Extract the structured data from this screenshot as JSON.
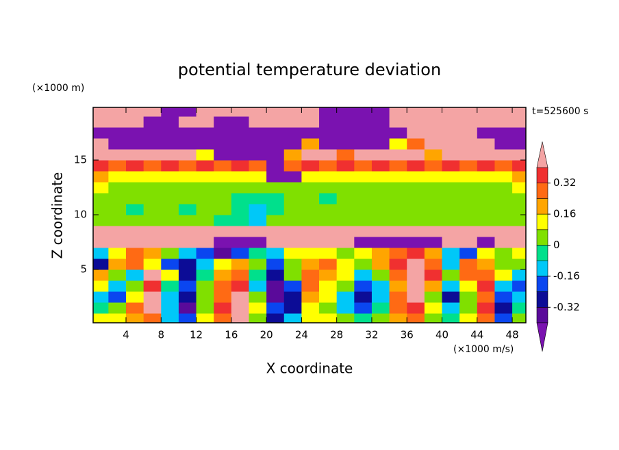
{
  "chart_data": {
    "type": "contour",
    "title": "potential temperature deviation",
    "x_label": "X coordinate",
    "y_label": "Z coordinate",
    "x_unit": "(×1000 m/s)",
    "y_unit": "(×1000 m)",
    "time_label": "t=525600 s",
    "xlim": [
      0,
      50
    ],
    "ylim": [
      0,
      20
    ],
    "xticks": [
      4,
      8,
      12,
      16,
      20,
      24,
      28,
      32,
      36,
      40,
      44,
      48
    ],
    "yticks": [
      5,
      10,
      15
    ],
    "x": [
      1,
      3,
      5,
      7,
      9,
      11,
      13,
      15,
      17,
      19,
      21,
      23,
      25,
      27,
      29,
      31,
      33,
      35,
      37,
      39,
      41,
      43,
      45,
      47,
      49
    ],
    "y": [
      0.5,
      1.5,
      2.5,
      3.5,
      4.5,
      5.5,
      6.5,
      7.5,
      8.5,
      9.5,
      10.5,
      11.5,
      12.5,
      13.5,
      14.5,
      15.5,
      16.5,
      17.5,
      18.5,
      19.5
    ],
    "z": [
      [
        0.1,
        0.12,
        0.2,
        0.3,
        -0.1,
        -0.2,
        0.1,
        0.25,
        0.45,
        0.05,
        -0.3,
        -0.1,
        0.15,
        0.1,
        0.05,
        -0.05,
        0.05,
        0.2,
        0.3,
        0.05,
        -0.05,
        0.1,
        0.3,
        -0.2,
        0.05
      ],
      [
        -0.05,
        0.05,
        0.25,
        0.4,
        -0.15,
        -0.35,
        0.05,
        0.35,
        0.5,
        0.1,
        -0.2,
        -0.25,
        0.15,
        0.05,
        -0.1,
        -0.2,
        -0.05,
        0.3,
        0.35,
        0.1,
        -0.15,
        0.05,
        0.35,
        -0.25,
        -0.05
      ],
      [
        -0.1,
        -0.2,
        0.15,
        0.4,
        -0.1,
        -0.3,
        0.0,
        0.3,
        0.45,
        0.0,
        -0.35,
        -0.3,
        0.2,
        0.1,
        -0.15,
        -0.3,
        -0.1,
        0.25,
        0.4,
        0.05,
        -0.3,
        0.0,
        0.3,
        -0.2,
        -0.1
      ],
      [
        0.1,
        -0.15,
        0.05,
        0.35,
        -0.05,
        -0.2,
        0.05,
        0.3,
        0.35,
        -0.1,
        -0.4,
        -0.2,
        0.25,
        0.15,
        0.0,
        -0.2,
        -0.15,
        0.2,
        0.4,
        0.2,
        -0.1,
        0.15,
        0.35,
        -0.1,
        -0.2
      ],
      [
        0.2,
        0.05,
        -0.1,
        0.4,
        0.1,
        -0.25,
        -0.05,
        0.2,
        0.3,
        -0.05,
        -0.3,
        0.0,
        0.3,
        0.2,
        0.1,
        -0.1,
        0.05,
        0.3,
        0.4,
        0.35,
        0.05,
        0.25,
        0.3,
        0.1,
        -0.15
      ],
      [
        -0.3,
        0.2,
        0.3,
        0.1,
        -0.2,
        -0.3,
        -0.15,
        0.15,
        0.2,
        0.05,
        -0.2,
        0.05,
        0.2,
        0.25,
        0.15,
        0.05,
        0.2,
        0.35,
        0.4,
        0.25,
        -0.1,
        0.3,
        0.2,
        0.05,
        0.0
      ],
      [
        -0.1,
        0.15,
        0.25,
        0.2,
        0.05,
        -0.1,
        -0.2,
        -0.35,
        -0.2,
        -0.05,
        -0.1,
        0.1,
        0.15,
        0.1,
        0.05,
        0.1,
        0.2,
        0.3,
        0.35,
        0.2,
        -0.1,
        -0.2,
        0.1,
        0.05,
        0.1
      ],
      [
        0.5,
        0.5,
        0.5,
        0.5,
        0.5,
        0.5,
        0.5,
        -0.5,
        -0.5,
        -0.5,
        0.5,
        0.5,
        0.5,
        0.5,
        0.5,
        -0.5,
        -0.5,
        -0.5,
        -0.5,
        -0.5,
        0.5,
        0.5,
        -0.45,
        0.5,
        0.5
      ],
      [
        0.5,
        0.5,
        0.5,
        0.5,
        0.5,
        0.5,
        0.5,
        0.5,
        0.5,
        0.5,
        0.5,
        0.5,
        0.5,
        0.5,
        0.5,
        0.5,
        0.5,
        0.5,
        0.5,
        0.5,
        0.5,
        0.5,
        0.5,
        0.5,
        0.5
      ],
      [
        0.03,
        0.02,
        0.03,
        0.05,
        0.02,
        0.03,
        0.04,
        -0.03,
        -0.05,
        -0.1,
        0.02,
        0.03,
        0.04,
        0.03,
        0.02,
        0.03,
        0.04,
        0.02,
        0.03,
        0.04,
        0.03,
        0.02,
        0.03,
        0.04,
        0.03
      ],
      [
        0.02,
        0.05,
        -0.03,
        0.03,
        0.05,
        -0.02,
        0.03,
        0.04,
        -0.04,
        -0.1,
        -0.03,
        0.05,
        0.03,
        0.04,
        0.02,
        0.05,
        0.03,
        0.04,
        0.02,
        0.05,
        0.03,
        0.04,
        0.05,
        0.03,
        0.04
      ],
      [
        0.04,
        0.03,
        0.05,
        0.04,
        0.03,
        0.05,
        0.04,
        0.03,
        -0.03,
        -0.05,
        -0.02,
        0.04,
        0.05,
        -0.02,
        0.04,
        0.05,
        0.03,
        0.04,
        0.05,
        0.03,
        0.04,
        0.05,
        0.03,
        0.04,
        0.05
      ],
      [
        0.1,
        0.06,
        0.05,
        0.06,
        0.05,
        0.06,
        0.05,
        0.06,
        0.05,
        0.06,
        0.05,
        0.06,
        0.05,
        0.06,
        0.05,
        0.06,
        0.05,
        0.06,
        0.05,
        0.06,
        0.05,
        0.06,
        0.05,
        0.06,
        0.1
      ],
      [
        0.2,
        0.12,
        0.15,
        0.12,
        0.15,
        0.12,
        0.15,
        0.12,
        0.15,
        0.12,
        -0.5,
        -0.45,
        0.15,
        0.12,
        0.15,
        0.12,
        0.15,
        0.12,
        0.15,
        0.12,
        0.15,
        0.12,
        0.15,
        0.12,
        0.2
      ],
      [
        0.35,
        0.3,
        0.35,
        0.3,
        0.35,
        0.3,
        0.35,
        0.3,
        0.35,
        0.3,
        -0.5,
        0.3,
        0.35,
        0.3,
        0.35,
        0.3,
        0.35,
        0.3,
        0.35,
        0.3,
        0.35,
        0.3,
        0.35,
        0.3,
        0.35
      ],
      [
        0.5,
        0.5,
        0.45,
        0.5,
        0.45,
        0.5,
        0.1,
        -0.5,
        -0.5,
        -0.5,
        -0.5,
        0.2,
        0.45,
        0.5,
        0.3,
        0.45,
        0.5,
        0.45,
        0.5,
        0.2,
        0.45,
        0.5,
        0.45,
        0.5,
        0.5
      ],
      [
        0.5,
        -0.5,
        -0.5,
        -0.5,
        -0.5,
        -0.5,
        -0.5,
        -0.5,
        -0.5,
        -0.5,
        -0.5,
        -0.5,
        0.2,
        -0.5,
        -0.5,
        -0.5,
        -0.5,
        0.1,
        0.3,
        0.5,
        0.5,
        0.5,
        0.5,
        -0.5,
        -0.5
      ],
      [
        -0.5,
        -0.5,
        -0.5,
        -0.5,
        -0.5,
        -0.5,
        -0.5,
        -0.5,
        -0.5,
        -0.5,
        -0.5,
        -0.5,
        -0.5,
        -0.5,
        -0.5,
        -0.5,
        -0.5,
        -0.5,
        0.5,
        0.5,
        0.5,
        0.5,
        -0.5,
        -0.5,
        -0.5
      ],
      [
        0.5,
        0.5,
        0.5,
        -0.5,
        -0.5,
        0.5,
        0.5,
        -0.5,
        -0.5,
        0.5,
        0.5,
        0.5,
        0.5,
        -0.5,
        -0.5,
        -0.5,
        -0.5,
        0.5,
        0.5,
        0.5,
        0.5,
        0.5,
        0.5,
        0.5,
        0.5
      ],
      [
        0.5,
        0.5,
        0.5,
        0.5,
        -0.5,
        -0.5,
        0.5,
        0.5,
        0.5,
        0.5,
        0.5,
        0.5,
        0.5,
        -0.5,
        -0.5,
        -0.5,
        -0.5,
        0.5,
        0.5,
        0.5,
        0.5,
        0.5,
        0.5,
        0.5,
        0.5
      ]
    ],
    "levels": [
      -0.4,
      -0.32,
      -0.24,
      -0.16,
      -0.08,
      0,
      0.08,
      0.16,
      0.24,
      0.32,
      0.4
    ],
    "colors": [
      "#7a12b0",
      "#5a0a9a",
      "#0c0c96",
      "#0a46f0",
      "#00c8f8",
      "#00e08c",
      "#80e000",
      "#ffff00",
      "#ffa500",
      "#ff6a14",
      "#f03030",
      "#f4a4a4"
    ],
    "colorbar_ticks": [
      -0.32,
      -0.16,
      0,
      0.16,
      0.32
    ]
  }
}
